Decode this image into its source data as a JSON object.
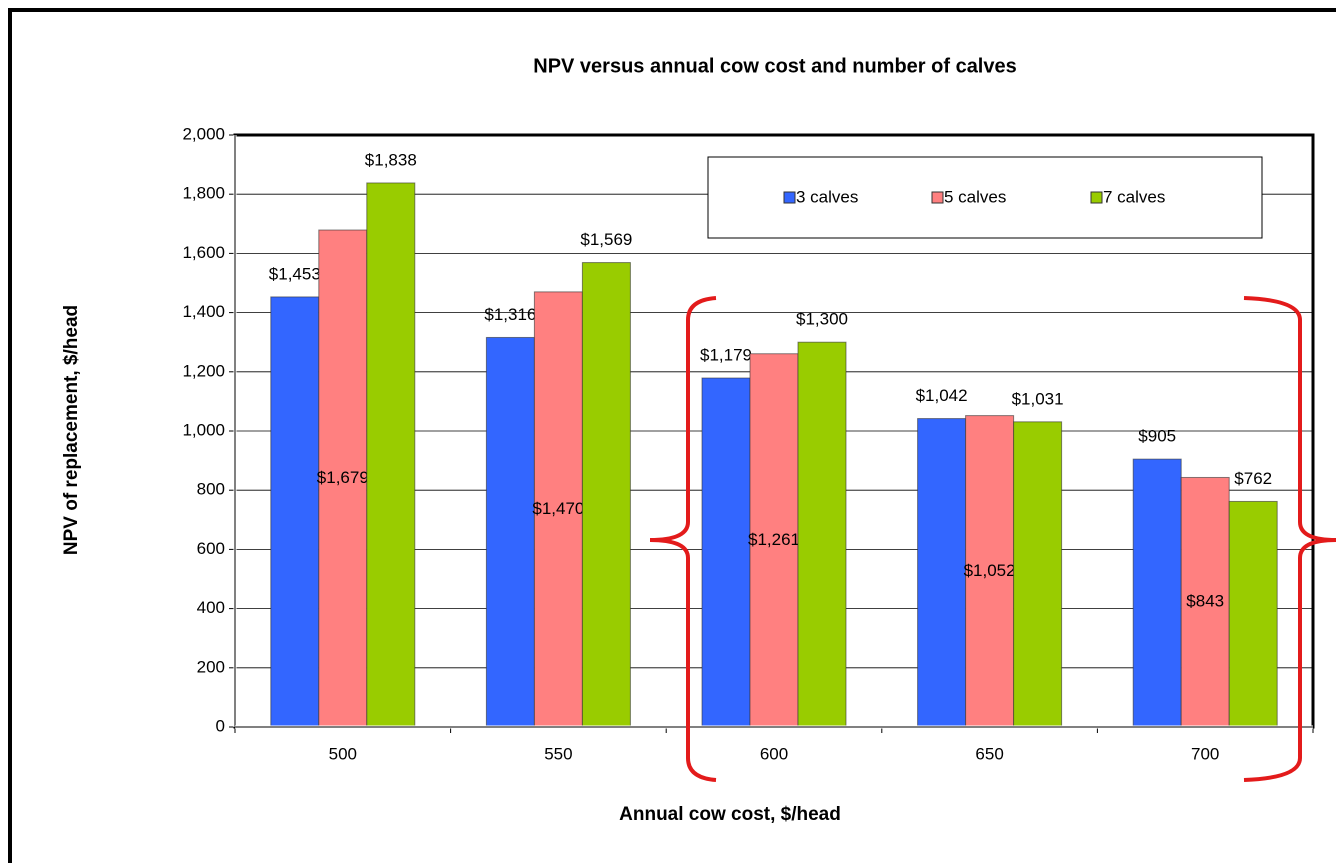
{
  "chart_data": {
    "type": "bar",
    "title": "NPV versus annual cow cost and number of calves",
    "x_label": "Annual cow cost, $/head",
    "y_label": "NPV of replacement, $/head",
    "categories": [
      "500",
      "550",
      "600",
      "650",
      "700"
    ],
    "series": [
      {
        "name": "3 calves",
        "color": "#3366ff",
        "values": [
          1453,
          1316,
          1179,
          1042,
          905
        ],
        "value_labels": [
          "$1,453",
          "$1,316",
          "$1,179",
          "$1,042",
          "$905"
        ]
      },
      {
        "name": "5 calves",
        "color": "#ff8080",
        "values": [
          1679,
          1470,
          1261,
          1052,
          843
        ],
        "value_labels": [
          "$1,679",
          "$1,470",
          "$1,261",
          "$1,052",
          "$843"
        ]
      },
      {
        "name": "7 calves",
        "color": "#99cc00",
        "values": [
          1838,
          1569,
          1300,
          1031,
          762
        ],
        "value_labels": [
          "$1,838",
          "$1,569",
          "$1,300",
          "$1,031",
          "$762"
        ]
      }
    ],
    "ylim": [
      0,
      2000
    ],
    "yticks": [
      0,
      200,
      400,
      600,
      800,
      {
        "value": 1000,
        "label": "1,000"
      },
      {
        "value": 1200,
        "label": "1,200"
      },
      {
        "value": 1400,
        "label": "1,400"
      },
      {
        "value": 1600,
        "label": "1,600"
      },
      {
        "value": 1800,
        "label": "1,800"
      },
      {
        "value": 2000,
        "label": "2,000"
      }
    ],
    "grid": true
  }
}
